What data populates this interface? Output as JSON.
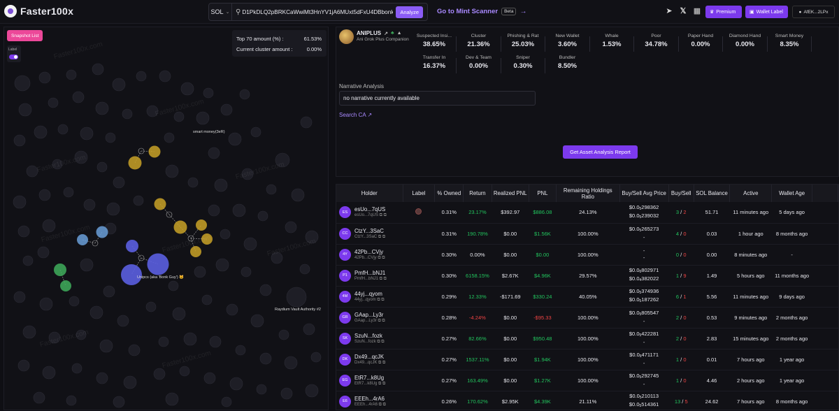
{
  "topbar": {
    "logo_text": "Faster100x",
    "chain": "SOL",
    "search_value": "D1PkDLQ2pBRKCaWwiMt3HnYV1jA6MUxt5dFxU4DBbonk",
    "analyze_label": "Analyze",
    "mint_label": "Go to Mint Scanner",
    "beta_label": "Beta",
    "premium_label": "Premium",
    "wallet_label": "Wallet Label",
    "account_label": "AfEK...2LPx"
  },
  "graph": {
    "snapshot_label": "Snapshot List",
    "label_toggle": "Label",
    "top70_label": "Top 70 amount (%) :",
    "top70_value": "61.53%",
    "cluster_label": "Current cluster amount :",
    "cluster_value": "0.00%",
    "annotations": {
      "smart_money": "smart money(3eR)",
      "unipcs": "Unipcs (aka 'Bonk Guy') 🐱",
      "raydium": "Raydium Vault Authority #2"
    },
    "watermark": "Faster100x.com"
  },
  "token": {
    "name": "ANIPLUS",
    "subtitle": "Ani Grok Plus Companion",
    "stats_row1": [
      {
        "label": "Suspected Insi...",
        "value": "38.65%"
      },
      {
        "label": "Cluster",
        "value": "21.36%"
      },
      {
        "label": "Phishing & Rat",
        "value": "25.03%"
      },
      {
        "label": "New Wallet",
        "value": "3.60%"
      },
      {
        "label": "Whale",
        "value": "1.53%"
      },
      {
        "label": "Poor",
        "value": "34.78%"
      },
      {
        "label": "Paper Hand",
        "value": "0.00%"
      },
      {
        "label": "Diamond Hand",
        "value": "0.00%"
      },
      {
        "label": "Smart Money",
        "value": "8.35%"
      }
    ],
    "stats_row2": [
      {
        "label": "Transfer In",
        "value": "16.37%"
      },
      {
        "label": "Dev & Team",
        "value": "0.00%"
      },
      {
        "label": "Sniper",
        "value": "0.30%"
      },
      {
        "label": "Bundler",
        "value": "8.50%"
      }
    ],
    "narrative_label": "Narrative Analysis",
    "narrative_value": "no narrative currently available",
    "search_ca": "Search CA",
    "get_report": "Get Asset Analysis Report"
  },
  "table": {
    "headers": [
      "Holder",
      "Label",
      "% Owned",
      "Return",
      "Realized PNL",
      "PNL",
      "Remaining Holdings Ratio",
      "Buy/Sell Avg Price",
      "Buy/Sell",
      "SOL Balance",
      "Active",
      "Wallet Age"
    ],
    "rows": [
      {
        "initials": "ES",
        "name": "esUo...7qUS",
        "sub": "esUo...7qUS",
        "owned": "0.31%",
        "ret": "23.17%",
        "ret_sign": "pos",
        "realized": "$392.97",
        "pnl": "$886.08",
        "pnl_sign": "pos",
        "ratio": "24.13%",
        "buy_prefix": "$0.0",
        "buy_sub": "5",
        "buy_tail": "298362",
        "sell_prefix": "$0.0",
        "sell_sub": "5",
        "sell_tail": "239032",
        "buys": "3",
        "sells": "2",
        "sol": "51.71",
        "active": "11 minutes ago",
        "age": "5 days ago",
        "label_badge": true
      },
      {
        "initials": "CC",
        "name": "CtzY...3SaC",
        "sub": "CtzY...3SaC",
        "owned": "0.31%",
        "ret": "190.78%",
        "ret_sign": "pos",
        "realized": "$0.00",
        "pnl": "$1.56K",
        "pnl_sign": "pos",
        "ratio": "100.00%",
        "buy_prefix": "$0.0",
        "buy_sub": "5",
        "buy_tail": "265273",
        "sell_prefix": "-",
        "sell_sub": "",
        "sell_tail": "",
        "buys": "4",
        "sells": "0",
        "sol": "0.03",
        "active": "1 hour ago",
        "age": "8 months ago",
        "label_badge": false
      },
      {
        "initials": "4Y",
        "name": "42Pb...CVjy",
        "sub": "42Pb...CVjy",
        "owned": "0.30%",
        "ret": "0.00%",
        "ret_sign": "",
        "realized": "$0.00",
        "pnl": "$0.00",
        "pnl_sign": "pos",
        "ratio": "100.00%",
        "buy_prefix": "-",
        "buy_sub": "",
        "buy_tail": "",
        "sell_prefix": "-",
        "sell_sub": "",
        "sell_tail": "",
        "buys": "0",
        "sells": "0",
        "sol": "0.00",
        "active": "8 minutes ago",
        "age": "-",
        "label_badge": false
      },
      {
        "initials": "P1",
        "name": "PmfH...bNJ1",
        "sub": "PmfH...bNJ1",
        "owned": "0.30%",
        "ret": "6158.15%",
        "ret_sign": "pos",
        "realized": "$2.67K",
        "pnl": "$4.96K",
        "pnl_sign": "pos",
        "ratio": "29.57%",
        "buy_prefix": "$0.0",
        "buy_sub": "6",
        "buy_tail": "802971",
        "sell_prefix": "$0.0",
        "sell_sub": "4",
        "sell_tail": "382022",
        "buys": "1",
        "sells": "9",
        "sol": "1.49",
        "active": "5 hours ago",
        "age": "11 months ago",
        "label_badge": false
      },
      {
        "initials": "4M",
        "name": "44yj...qyom",
        "sub": "44yj...qyom",
        "owned": "0.29%",
        "ret": "12.33%",
        "ret_sign": "pos",
        "realized": "-$171.69",
        "pnl": "$330.24",
        "pnl_sign": "pos",
        "ratio": "40.05%",
        "buy_prefix": "$0.0",
        "buy_sub": "5",
        "buy_tail": "374936",
        "sell_prefix": "$0.0",
        "sell_sub": "5",
        "sell_tail": "187262",
        "buys": "6",
        "sells": "1",
        "sol": "5.56",
        "active": "11 minutes ago",
        "age": "9 days ago",
        "label_badge": false
      },
      {
        "initials": "GR",
        "name": "GAap...Ly3r",
        "sub": "GAap...Ly3r",
        "owned": "0.28%",
        "ret": "-4.24%",
        "ret_sign": "neg",
        "realized": "$0.00",
        "pnl": "-$95.33",
        "pnl_sign": "neg",
        "ratio": "100.00%",
        "buy_prefix": "$0.0",
        "buy_sub": "5",
        "buy_tail": "805547",
        "sell_prefix": "-",
        "sell_sub": "",
        "sell_tail": "",
        "buys": "2",
        "sells": "0",
        "sol": "0.53",
        "active": "9 minutes ago",
        "age": "2 months ago",
        "label_badge": false
      },
      {
        "initials": "SK",
        "name": "SzuN...fozk",
        "sub": "SzuN...fozk",
        "owned": "0.27%",
        "ret": "82.66%",
        "ret_sign": "pos",
        "realized": "$0.00",
        "pnl": "$950.48",
        "pnl_sign": "pos",
        "ratio": "100.00%",
        "buy_prefix": "$0.0",
        "buy_sub": "5",
        "buy_tail": "422281",
        "sell_prefix": "-",
        "sell_sub": "",
        "sell_tail": "",
        "buys": "2",
        "sells": "0",
        "sol": "2.83",
        "active": "15 minutes ago",
        "age": "2 months ago",
        "label_badge": false
      },
      {
        "initials": "DK",
        "name": "Dx49...qcJK",
        "sub": "Dx49...qcJK",
        "owned": "0.27%",
        "ret": "1537.11%",
        "ret_sign": "pos",
        "realized": "$0.00",
        "pnl": "$1.94K",
        "pnl_sign": "pos",
        "ratio": "100.00%",
        "buy_prefix": "$0.0",
        "buy_sub": "6",
        "buy_tail": "471171",
        "sell_prefix": "-",
        "sell_sub": "",
        "sell_tail": "",
        "buys": "1",
        "sells": "0",
        "sol": "0.01",
        "active": "7 hours ago",
        "age": "1 year ago",
        "label_badge": false
      },
      {
        "initials": "EG",
        "name": "EtR7...k8Ug",
        "sub": "EtR7...k8Ug",
        "owned": "0.27%",
        "ret": "163.49%",
        "ret_sign": "pos",
        "realized": "$0.00",
        "pnl": "$1.27K",
        "pnl_sign": "pos",
        "ratio": "100.00%",
        "buy_prefix": "$0.0",
        "buy_sub": "5",
        "buy_tail": "292745",
        "sell_prefix": "-",
        "sell_sub": "",
        "sell_tail": "",
        "buys": "1",
        "sells": "0",
        "sol": "4.46",
        "active": "2 hours ago",
        "age": "1 year ago",
        "label_badge": false
      },
      {
        "initials": "E6",
        "name": "EEEh...4rA6",
        "sub": "EEEh...4rA6",
        "owned": "0.26%",
        "ret": "170.62%",
        "ret_sign": "pos",
        "realized": "$2.95K",
        "pnl": "$4.39K",
        "pnl_sign": "pos",
        "ratio": "21.11%",
        "buy_prefix": "$0.0",
        "buy_sub": "5",
        "buy_tail": "210113",
        "sell_prefix": "$0.0",
        "sell_sub": "5",
        "sell_tail": "514361",
        "buys": "13",
        "sells": "5",
        "sol": "24.62",
        "active": "7 hours ago",
        "age": "8 months ago",
        "label_badge": false
      }
    ]
  }
}
